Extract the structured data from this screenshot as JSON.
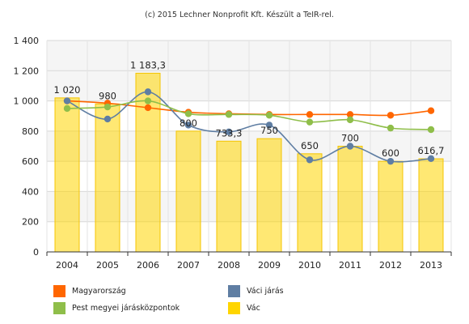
{
  "credit": "(c) 2015 Lechner Nonprofit Kft. Készült a TeIR-rel.",
  "chart_data": {
    "type": "bar",
    "categories": [
      "2004",
      "2005",
      "2006",
      "2007",
      "2008",
      "2009",
      "2010",
      "2011",
      "2012",
      "2013"
    ],
    "ylim": [
      0,
      1400
    ],
    "yticks": [
      0,
      200,
      400,
      600,
      800,
      1000,
      1200,
      1400
    ],
    "ytick_labels": [
      "0",
      "200",
      "400",
      "600",
      "800",
      "1 000",
      "1 200",
      "1 400"
    ],
    "grid": true,
    "legend_position": "bottom",
    "bar_series": {
      "name": "Vác",
      "color": "#FFD500",
      "values": [
        1020,
        980,
        1183.3,
        800,
        733.3,
        750,
        650,
        700,
        600,
        616.7
      ],
      "labels": [
        "1 020",
        "980",
        "1 183,3",
        "800",
        "733,3",
        "750",
        "650",
        "700",
        "600",
        "616,7"
      ]
    },
    "line_series": [
      {
        "name": "Magyarország",
        "color": "#FF6600",
        "values": [
          1000,
          985,
          955,
          925,
          915,
          910,
          910,
          910,
          905,
          935
        ]
      },
      {
        "name": "Váci járás",
        "color": "#5F7EA3",
        "values": [
          1000,
          880,
          1060,
          840,
          795,
          840,
          610,
          700,
          600,
          618
        ]
      },
      {
        "name": "Pest megyei járásközpontok",
        "color": "#8FBE4A",
        "values": [
          950,
          960,
          1000,
          915,
          910,
          905,
          860,
          875,
          820,
          810
        ]
      }
    ],
    "legend": [
      {
        "name": "Magyarország",
        "color": "#FF6600"
      },
      {
        "name": "Váci járás",
        "color": "#5F7EA3"
      },
      {
        "name": "Pest megyei járásközpontok",
        "color": "#8FBE4A"
      },
      {
        "name": "Vác",
        "color": "#FFD500"
      }
    ]
  }
}
